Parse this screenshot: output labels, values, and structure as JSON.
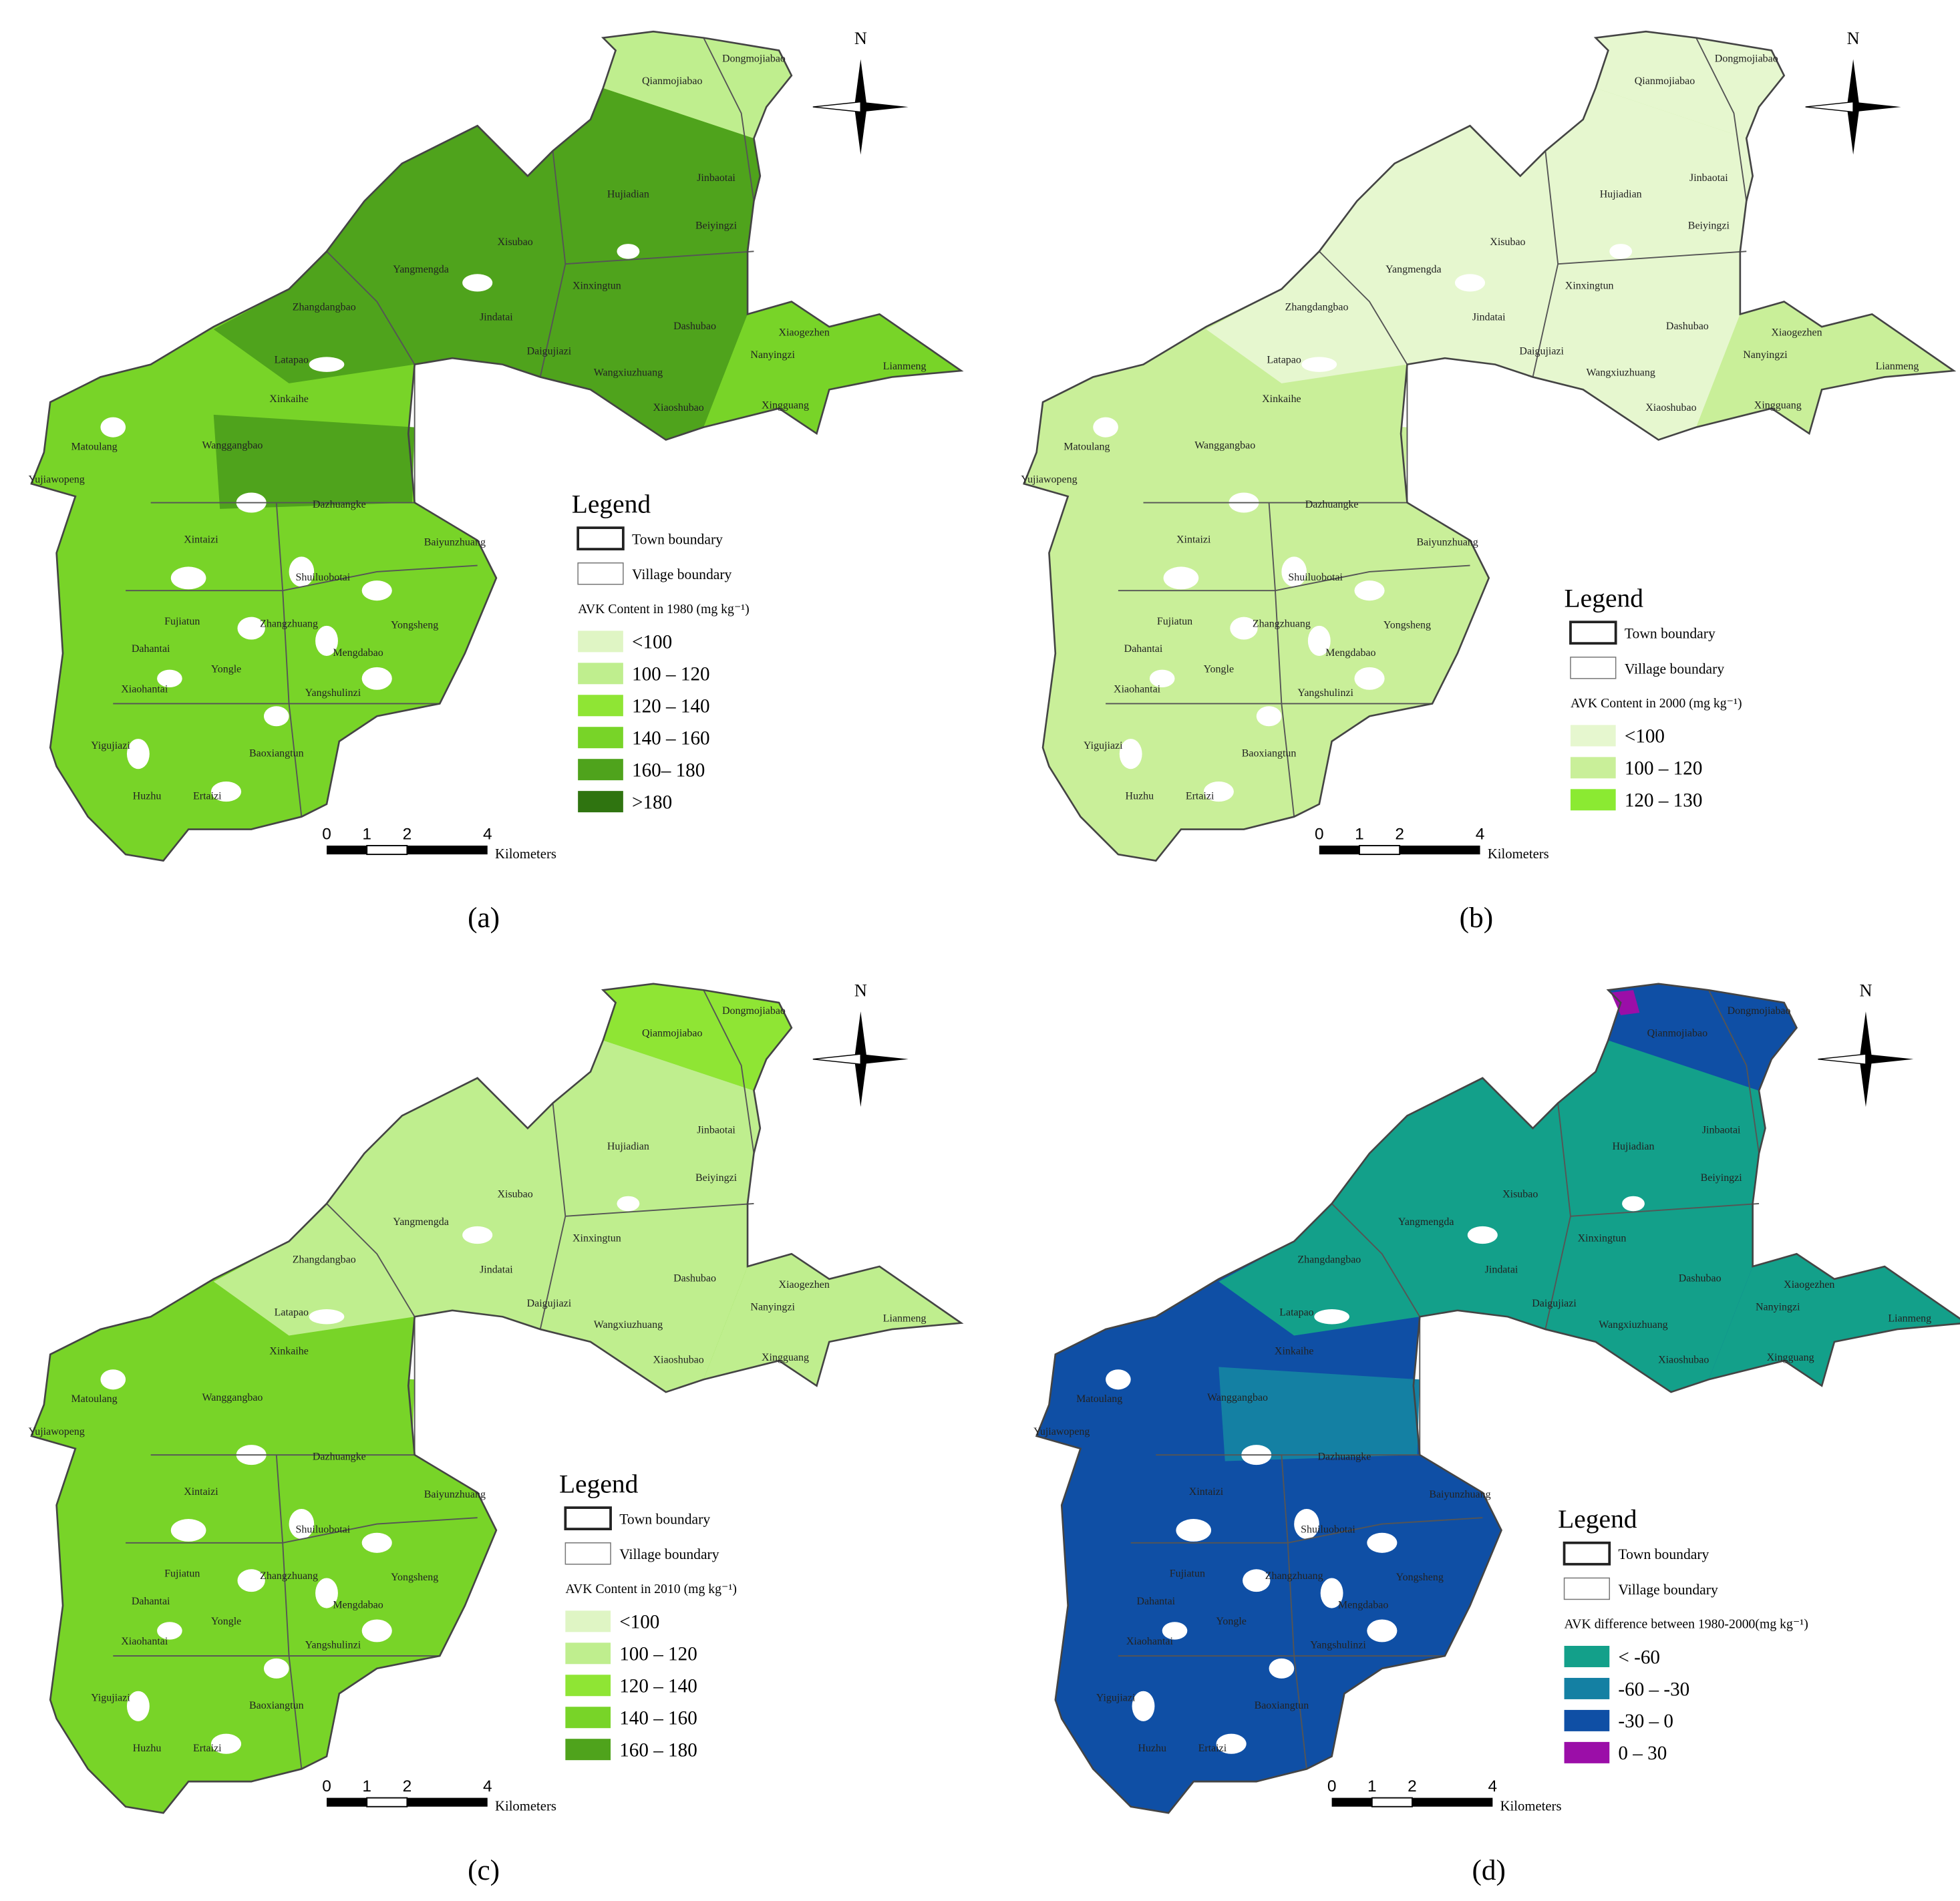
{
  "villages": [
    "Dongmojiabao",
    "Qianmojiabao",
    "Jinbaotai",
    "Hujiadian",
    "Beiyingzi",
    "Xisubao",
    "Yangmengda",
    "Xinxingtun",
    "Zhangdangbao",
    "Jindatai",
    "Dashubao",
    "Xiaogezhen",
    "Latapao",
    "Daigujiazi",
    "Nanyingzi",
    "Lianmeng",
    "Wangxiuzhuang",
    "Xinkaihe",
    "Xiaoshubao",
    "Xingguang",
    "Matoulang",
    "Wanggangbao",
    "Yujiawopeng",
    "Dazhuangke",
    "Baiyunzhuang",
    "Xintaizi",
    "Shuiluobotai",
    "Fujiatun",
    "Zhangzhuang",
    "Yongsheng",
    "Dahantai",
    "Mengdabao",
    "Yongle",
    "Xiaohantai",
    "Yangshulinzi",
    "Yigujiazi",
    "Baoxiangtun",
    "Huzhu",
    "Ertaizi"
  ],
  "panels": [
    {
      "caption": "(a)",
      "north": "N",
      "legend": {
        "title": "Legend",
        "town": "Town boundary",
        "village": "Village boundary",
        "heading": "AVK Content in 1980 (mg kg⁻¹)",
        "classes": [
          {
            "label": "<100",
            "color": "#dff5c4"
          },
          {
            "label": "100 – 120",
            "color": "#bfee8e"
          },
          {
            "label": "120 – 140",
            "color": "#8fe534"
          },
          {
            "label": "140 – 160",
            "color": "#78d428"
          },
          {
            "label": "160– 180",
            "color": "#4fa31c"
          },
          {
            "label": ">180",
            "color": "#2f7410"
          }
        ]
      },
      "scale": {
        "ticks": [
          "0",
          "1",
          "2",
          "4"
        ],
        "unit": "Kilometers"
      }
    },
    {
      "caption": "(b)",
      "north": "N",
      "legend": {
        "title": "Legend",
        "town": "Town boundary",
        "village": "Village boundary",
        "heading": "AVK Content in 2000 (mg kg⁻¹)",
        "classes": [
          {
            "label": "<100",
            "color": "#e6f7cf"
          },
          {
            "label": "100 – 120",
            "color": "#c9ef99"
          },
          {
            "label": "120 – 130",
            "color": "#8bea32"
          }
        ]
      },
      "scale": {
        "ticks": [
          "0",
          "1",
          "2",
          "4"
        ],
        "unit": "Kilometers"
      }
    },
    {
      "caption": "(c)",
      "north": "N",
      "legend": {
        "title": "Legend",
        "town": "Town boundary",
        "village": "Village boundary",
        "heading": "AVK Content in 2010 (mg kg⁻¹)",
        "classes": [
          {
            "label": "<100",
            "color": "#dff5c4"
          },
          {
            "label": "100 – 120",
            "color": "#bfee8e"
          },
          {
            "label": "120 – 140",
            "color": "#8fe534"
          },
          {
            "label": "140 – 160",
            "color": "#78d428"
          },
          {
            "label": "160 – 180",
            "color": "#4fa31c"
          }
        ]
      },
      "scale": {
        "ticks": [
          "0",
          "1",
          "2",
          "4"
        ],
        "unit": "Kilometers"
      }
    },
    {
      "caption": "(d)",
      "north": "N",
      "legend": {
        "title": "Legend",
        "town": "Town boundary",
        "village": "Village boundary",
        "heading": "AVK difference between 1980-2000(mg kg⁻¹)",
        "classes": [
          {
            "label": "< -60",
            "color": "#13a08a"
          },
          {
            "label": "-60 – -30",
            "color": "#1480a3"
          },
          {
            "label": "-30 – 0",
            "color": "#0f4fa5"
          },
          {
            "label": "0 – 30",
            "color": "#9b0ea8"
          }
        ]
      },
      "scale": {
        "ticks": [
          "0",
          "1",
          "2",
          "4"
        ],
        "unit": "Kilometers"
      }
    }
  ]
}
